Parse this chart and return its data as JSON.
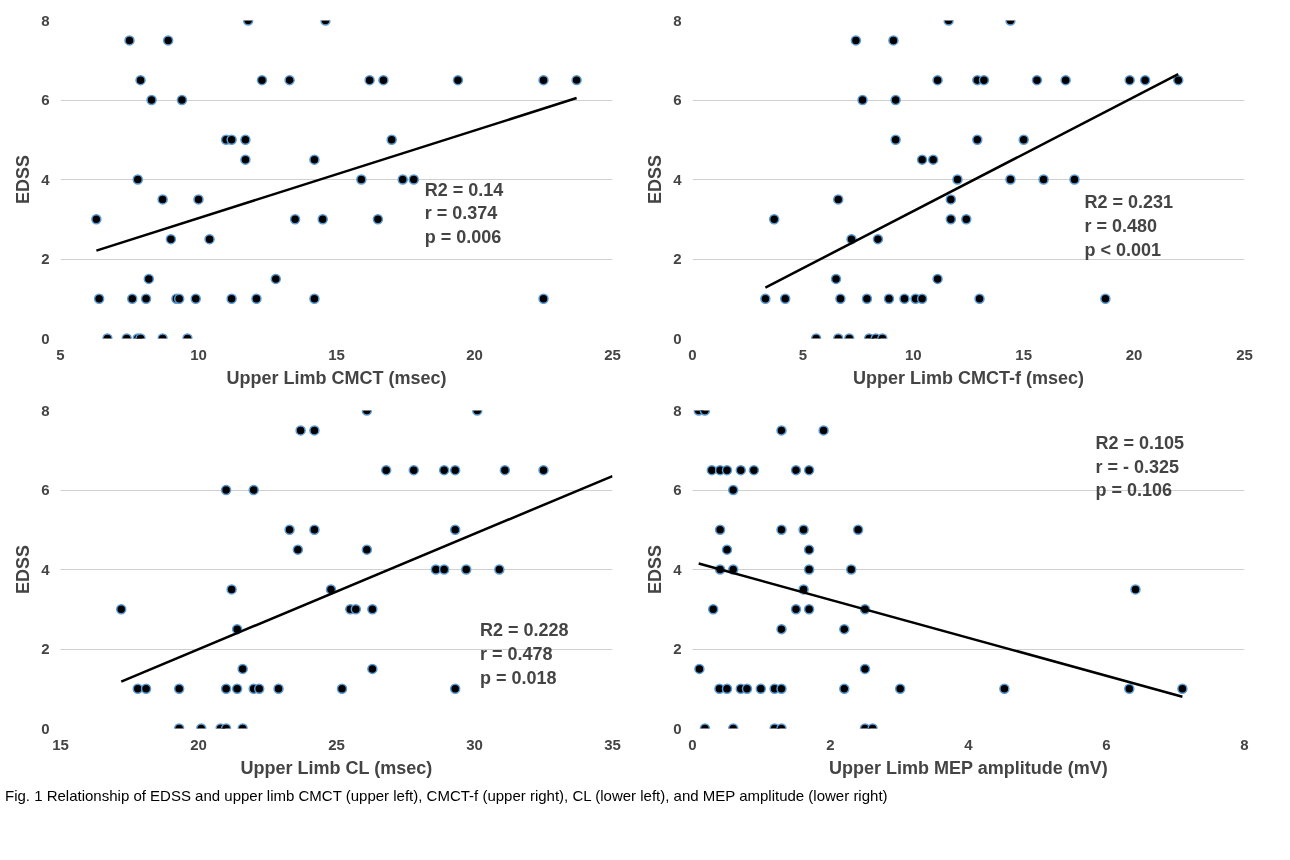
{
  "chart_data": [
    {
      "type": "scatter",
      "xlabel": "Upper Limb CMCT (msec)",
      "ylabel": "EDSS",
      "xlim": [
        5,
        25
      ],
      "xticks": [
        5,
        10,
        15,
        20,
        25
      ],
      "ylim": [
        0,
        8
      ],
      "yticks": [
        0,
        2,
        4,
        6,
        8
      ],
      "grid": "y",
      "series": [
        {
          "marker": "circle",
          "color": "#000000",
          "x": [
            11.8,
            14.6,
            7.5,
            8.9,
            7.9,
            12.3,
            13.3,
            16.2,
            16.7,
            19.4,
            22.5,
            23.7,
            8.3,
            9.4,
            11.0,
            11.2,
            11.7,
            17.0,
            11.7,
            14.2,
            7.8,
            15.9,
            17.4,
            17.8,
            8.7,
            10.0,
            6.3,
            13.5,
            14.5,
            16.5,
            9.0,
            10.4,
            8.2,
            12.8,
            6.4,
            7.6,
            8.1,
            9.2,
            9.3,
            9.9,
            11.2,
            12.1,
            14.2,
            22.5,
            6.7,
            7.4,
            7.8,
            7.9,
            8.7,
            9.6
          ],
          "values": [
            8,
            8,
            7.5,
            7.5,
            6.5,
            6.5,
            6.5,
            6.5,
            6.5,
            6.5,
            6.5,
            6.5,
            6,
            6,
            5,
            5,
            5,
            5,
            4.5,
            4.5,
            4,
            4,
            4,
            4,
            3.5,
            3.5,
            3,
            3,
            3,
            3,
            2.5,
            2.5,
            1.5,
            1.5,
            1,
            1,
            1,
            1,
            1,
            1,
            1,
            1,
            1,
            1,
            0,
            0,
            0,
            0,
            0,
            0
          ]
        },
        {
          "type": "line",
          "color": "#000000",
          "x": [
            6.3,
            23.7
          ],
          "values": [
            2.21,
            6.05
          ]
        }
      ],
      "annotations": [
        "R2 = 0.14",
        "r = 0.374",
        "p = 0.006"
      ]
    },
    {
      "type": "scatter",
      "xlabel": "Upper Limb CMCT-f (msec)",
      "ylabel": "EDSS",
      "xlim": [
        0,
        25
      ],
      "xticks": [
        0,
        5,
        10,
        15,
        20,
        25
      ],
      "ylim": [
        0,
        8
      ],
      "yticks": [
        0,
        2,
        4,
        6,
        8
      ],
      "grid": "y",
      "series": [
        {
          "marker": "circle",
          "color": "#000000",
          "x": [
            11.6,
            14.4,
            7.4,
            9.1,
            11.1,
            12.9,
            13.2,
            15.6,
            16.9,
            19.8,
            20.5,
            22.0,
            7.7,
            9.2,
            9.2,
            12.9,
            15.0,
            10.4,
            10.9,
            12.0,
            14.4,
            15.9,
            17.3,
            6.6,
            11.7,
            3.7,
            11.7,
            12.4,
            7.2,
            8.4,
            6.5,
            11.1,
            3.3,
            4.2,
            6.7,
            7.9,
            8.9,
            9.6,
            10.1,
            10.4,
            13.0,
            18.7,
            5.6,
            6.6,
            7.1,
            8.0,
            8.3,
            8.6
          ],
          "values": [
            8,
            8,
            7.5,
            7.5,
            6.5,
            6.5,
            6.5,
            6.5,
            6.5,
            6.5,
            6.5,
            6.5,
            6,
            6,
            5,
            5,
            5,
            4.5,
            4.5,
            4,
            4,
            4,
            4,
            3.5,
            3.5,
            3,
            3,
            3,
            2.5,
            2.5,
            1.5,
            1.5,
            1,
            1,
            1,
            1,
            1,
            1,
            1,
            1,
            1,
            1,
            0,
            0,
            0,
            0,
            0,
            0
          ]
        },
        {
          "type": "line",
          "color": "#000000",
          "x": [
            3.3,
            22.0
          ],
          "values": [
            1.28,
            6.65
          ]
        }
      ],
      "annotations": [
        "R2 = 0.231",
        "r = 0.480",
        "p < 0.001"
      ]
    },
    {
      "type": "scatter",
      "xlabel": "Upper Limb CL (msec)",
      "ylabel": "EDSS",
      "xlim": [
        15,
        35
      ],
      "xticks": [
        15,
        20,
        25,
        30,
        35
      ],
      "ylim": [
        0,
        8
      ],
      "yticks": [
        0,
        2,
        4,
        6,
        8
      ],
      "grid": "y",
      "series": [
        {
          "marker": "circle",
          "color": "#000000",
          "x": [
            26.1,
            30.1,
            23.7,
            24.2,
            26.8,
            27.8,
            28.9,
            29.3,
            31.1,
            32.5,
            21.0,
            22.0,
            23.3,
            24.2,
            29.3,
            23.6,
            26.1,
            28.6,
            28.9,
            29.7,
            30.9,
            21.2,
            24.8,
            17.2,
            25.5,
            25.7,
            26.3,
            21.4,
            21.6,
            26.3,
            17.8,
            18.1,
            19.3,
            21.0,
            21.4,
            22.0,
            22.2,
            22.9,
            25.2,
            29.3,
            19.3,
            20.1,
            20.8,
            21.0,
            21.6
          ],
          "values": [
            8,
            8,
            7.5,
            7.5,
            6.5,
            6.5,
            6.5,
            6.5,
            6.5,
            6.5,
            6,
            6,
            5,
            5,
            5,
            4.5,
            4.5,
            4,
            4,
            4,
            4,
            3.5,
            3.5,
            3,
            3,
            3,
            3,
            2.5,
            1.5,
            1.5,
            1,
            1,
            1,
            1,
            1,
            1,
            1,
            1,
            1,
            1,
            0,
            0,
            0,
            0,
            0
          ]
        },
        {
          "type": "line",
          "color": "#000000",
          "x": [
            17.2,
            35
          ],
          "values": [
            1.18,
            6.35
          ]
        }
      ],
      "annotations": [
        "R2 = 0.228",
        "r = 0.478",
        "p = 0.018"
      ]
    },
    {
      "type": "scatter",
      "xlabel": "Upper Limb MEP amplitude (mV)",
      "ylabel": "EDSS",
      "xlim": [
        0,
        8
      ],
      "xticks": [
        0,
        2,
        4,
        6,
        8
      ],
      "ylim": [
        0,
        8
      ],
      "yticks": [
        0,
        2,
        4,
        6,
        8
      ],
      "grid": "y",
      "series": [
        {
          "marker": "circle",
          "color": "#000000",
          "x": [
            0.09,
            0.18,
            1.29,
            1.9,
            0.28,
            0.4,
            0.5,
            0.7,
            0.89,
            1.5,
            1.69,
            0.59,
            0.4,
            1.29,
            1.61,
            2.4,
            0.5,
            1.69,
            0.4,
            0.59,
            1.69,
            2.3,
            1.61,
            6.42,
            0.3,
            1.5,
            1.69,
            2.5,
            1.29,
            2.2,
            0.1,
            2.5,
            0.39,
            0.5,
            0.7,
            0.79,
            0.99,
            1.19,
            1.29,
            2.2,
            3.01,
            4.52,
            6.33,
            7.1,
            0.18,
            0.59,
            1.19,
            1.29,
            2.5,
            2.61
          ],
          "values": [
            8,
            8,
            7.5,
            7.5,
            6.5,
            6.5,
            6.5,
            6.5,
            6.5,
            6.5,
            6.5,
            6,
            5,
            5,
            5,
            5,
            4.5,
            4.5,
            4,
            4,
            4,
            4,
            3.5,
            3.5,
            3,
            3,
            3,
            3,
            2.5,
            2.5,
            1.5,
            1.5,
            1,
            1,
            1,
            1,
            1,
            1,
            1,
            1,
            1,
            1,
            1,
            1,
            0,
            0,
            0,
            0,
            0,
            0
          ]
        },
        {
          "type": "line",
          "color": "#000000",
          "x": [
            0.09,
            7.1
          ],
          "values": [
            4.15,
            0.8
          ]
        }
      ],
      "annotations": [
        "R2 = 0.105",
        "r = - 0.325",
        "p = 0.106",
        "Fig. 1 Relationship of EDSS and upper limb CMCT (upper left), CMCT-f (upper right), CL (lower left), and MEP amplitude (lower right)"
      ]
    }
  ]
}
